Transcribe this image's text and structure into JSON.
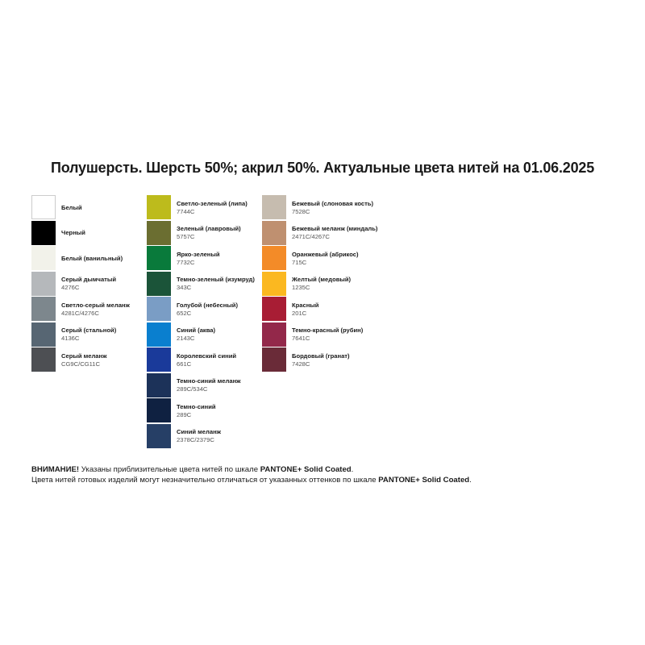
{
  "title": "Полушерсть. Шерсть 50%; акрил 50%. Актуальные цвета нитей на 01.06.2025",
  "columns": [
    [
      {
        "name": "Белый",
        "code": "",
        "color": "#ffffff"
      },
      {
        "name": "Черный",
        "code": "",
        "color": "#000000"
      },
      {
        "name": "Белый (ванильный)",
        "code": "",
        "color": "#f2f2ea"
      },
      {
        "name": "Серый дымчатый",
        "code": "4276C",
        "color": "#b5b8bb"
      },
      {
        "name": "Светло-серый меланж",
        "code": "4281C/4276C",
        "color": "#7d878d"
      },
      {
        "name": "Серый (стальной)",
        "code": "4136C",
        "color": "#576673"
      },
      {
        "name": "Серый меланж",
        "code": "CG9C/CG11C",
        "color": "#4d4f53"
      }
    ],
    [
      {
        "name": "Светло-зеленый (липа)",
        "code": "7744C",
        "color": "#bdbb1c"
      },
      {
        "name": "Зеленый (лавровый)",
        "code": "5757C",
        "color": "#6b6e31"
      },
      {
        "name": "Ярко-зеленый",
        "code": "7732C",
        "color": "#097a3b"
      },
      {
        "name": "Темно-зеленый (изумруд)",
        "code": "343C",
        "color": "#1b5439"
      },
      {
        "name": "Голубой (небесный)",
        "code": "652C",
        "color": "#7a9dc5"
      },
      {
        "name": "Синий (аква)",
        "code": "2143C",
        "color": "#0a7fcf"
      },
      {
        "name": "Королевский синий",
        "code": "661C",
        "color": "#1a3a9a"
      },
      {
        "name": "Темно-синий меланж",
        "code": "289C/534C",
        "color": "#1c3259"
      },
      {
        "name": "Темно-синий",
        "code": "289C",
        "color": "#0f2141"
      },
      {
        "name": "Синий меланж",
        "code": "2378C/2379C",
        "color": "#263f66"
      }
    ],
    [
      {
        "name": "Бежевый (слоновая кость)",
        "code": "7528C",
        "color": "#c6bcaf"
      },
      {
        "name": "Бежевый меланж (миндаль)",
        "code": "2471C/4267C",
        "color": "#bf9070"
      },
      {
        "name": "Оранжевый (абрикос)",
        "code": "715C",
        "color": "#f38b28"
      },
      {
        "name": "Желтый (медовый)",
        "code": "1235C",
        "color": "#fbb820"
      },
      {
        "name": "Красный",
        "code": "201C",
        "color": "#a81d34"
      },
      {
        "name": "Темно-красный (рубин)",
        "code": "7641C",
        "color": "#93284a"
      },
      {
        "name": "Бордовый (гранат)",
        "code": "7428C",
        "color": "#6a2b38"
      }
    ]
  ],
  "notice": {
    "warning": "ВНИМАНИЕ!",
    "line1": " Указаны приблизительные цвета нитей по шкале ",
    "pantone": "PANTONE+ Solid Coated",
    "line1_end": ".",
    "line2": "Цвета нитей готовых изделий могут незначительно отличаться от указанных оттенков по шкале ",
    "line2_end": "."
  }
}
